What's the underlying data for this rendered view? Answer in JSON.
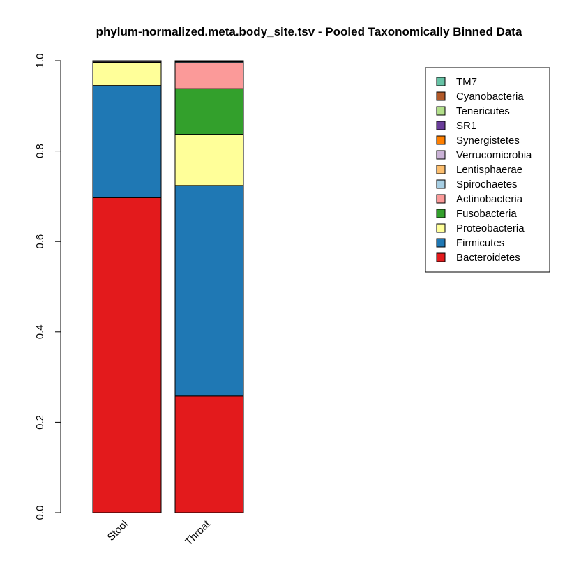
{
  "chart_data": {
    "type": "bar",
    "stacked": true,
    "title": "phylum-normalized.meta.body_site.tsv - Pooled Taxonomically Binned Data",
    "xlabel": "",
    "ylabel": "",
    "ylim": [
      0,
      1
    ],
    "yticks": [
      "0.0",
      "0.2",
      "0.4",
      "0.6",
      "0.8",
      "1.0"
    ],
    "grid": false,
    "legend_position": "top-right",
    "categories": [
      "Stool",
      "Throat"
    ],
    "series": [
      {
        "name": "Bacteroidetes",
        "color": "#e31a1c",
        "values": [
          0.697,
          0.258
        ]
      },
      {
        "name": "Firmicutes",
        "color": "#1f78b4",
        "values": [
          0.248,
          0.466
        ]
      },
      {
        "name": "Proteobacteria",
        "color": "#ffff99",
        "values": [
          0.05,
          0.113
        ]
      },
      {
        "name": "Fusobacteria",
        "color": "#33a02c",
        "values": [
          0.001,
          0.101
        ]
      },
      {
        "name": "Actinobacteria",
        "color": "#fb9a99",
        "values": [
          0.001,
          0.057
        ]
      },
      {
        "name": "Spirochaetes",
        "color": "#a6cee3",
        "values": [
          0.0,
          0.002
        ]
      },
      {
        "name": "Lentisphaerae",
        "color": "#fdbf6f",
        "values": [
          0.0,
          0.0
        ]
      },
      {
        "name": "Verrucomicrobia",
        "color": "#cab2d6",
        "values": [
          0.002,
          0.0
        ]
      },
      {
        "name": "Synergistetes",
        "color": "#ff7f00",
        "values": [
          0.0,
          0.001
        ]
      },
      {
        "name": "SR1",
        "color": "#6a3d9a",
        "values": [
          0.0,
          0.001
        ]
      },
      {
        "name": "Tenericutes",
        "color": "#b2df8a",
        "values": [
          0.001,
          0.0
        ]
      },
      {
        "name": "Cyanobacteria",
        "color": "#b15928",
        "values": [
          0.0,
          0.0
        ]
      },
      {
        "name": "TM7",
        "color": "#66c2a5",
        "values": [
          0.0,
          0.001
        ]
      }
    ]
  }
}
